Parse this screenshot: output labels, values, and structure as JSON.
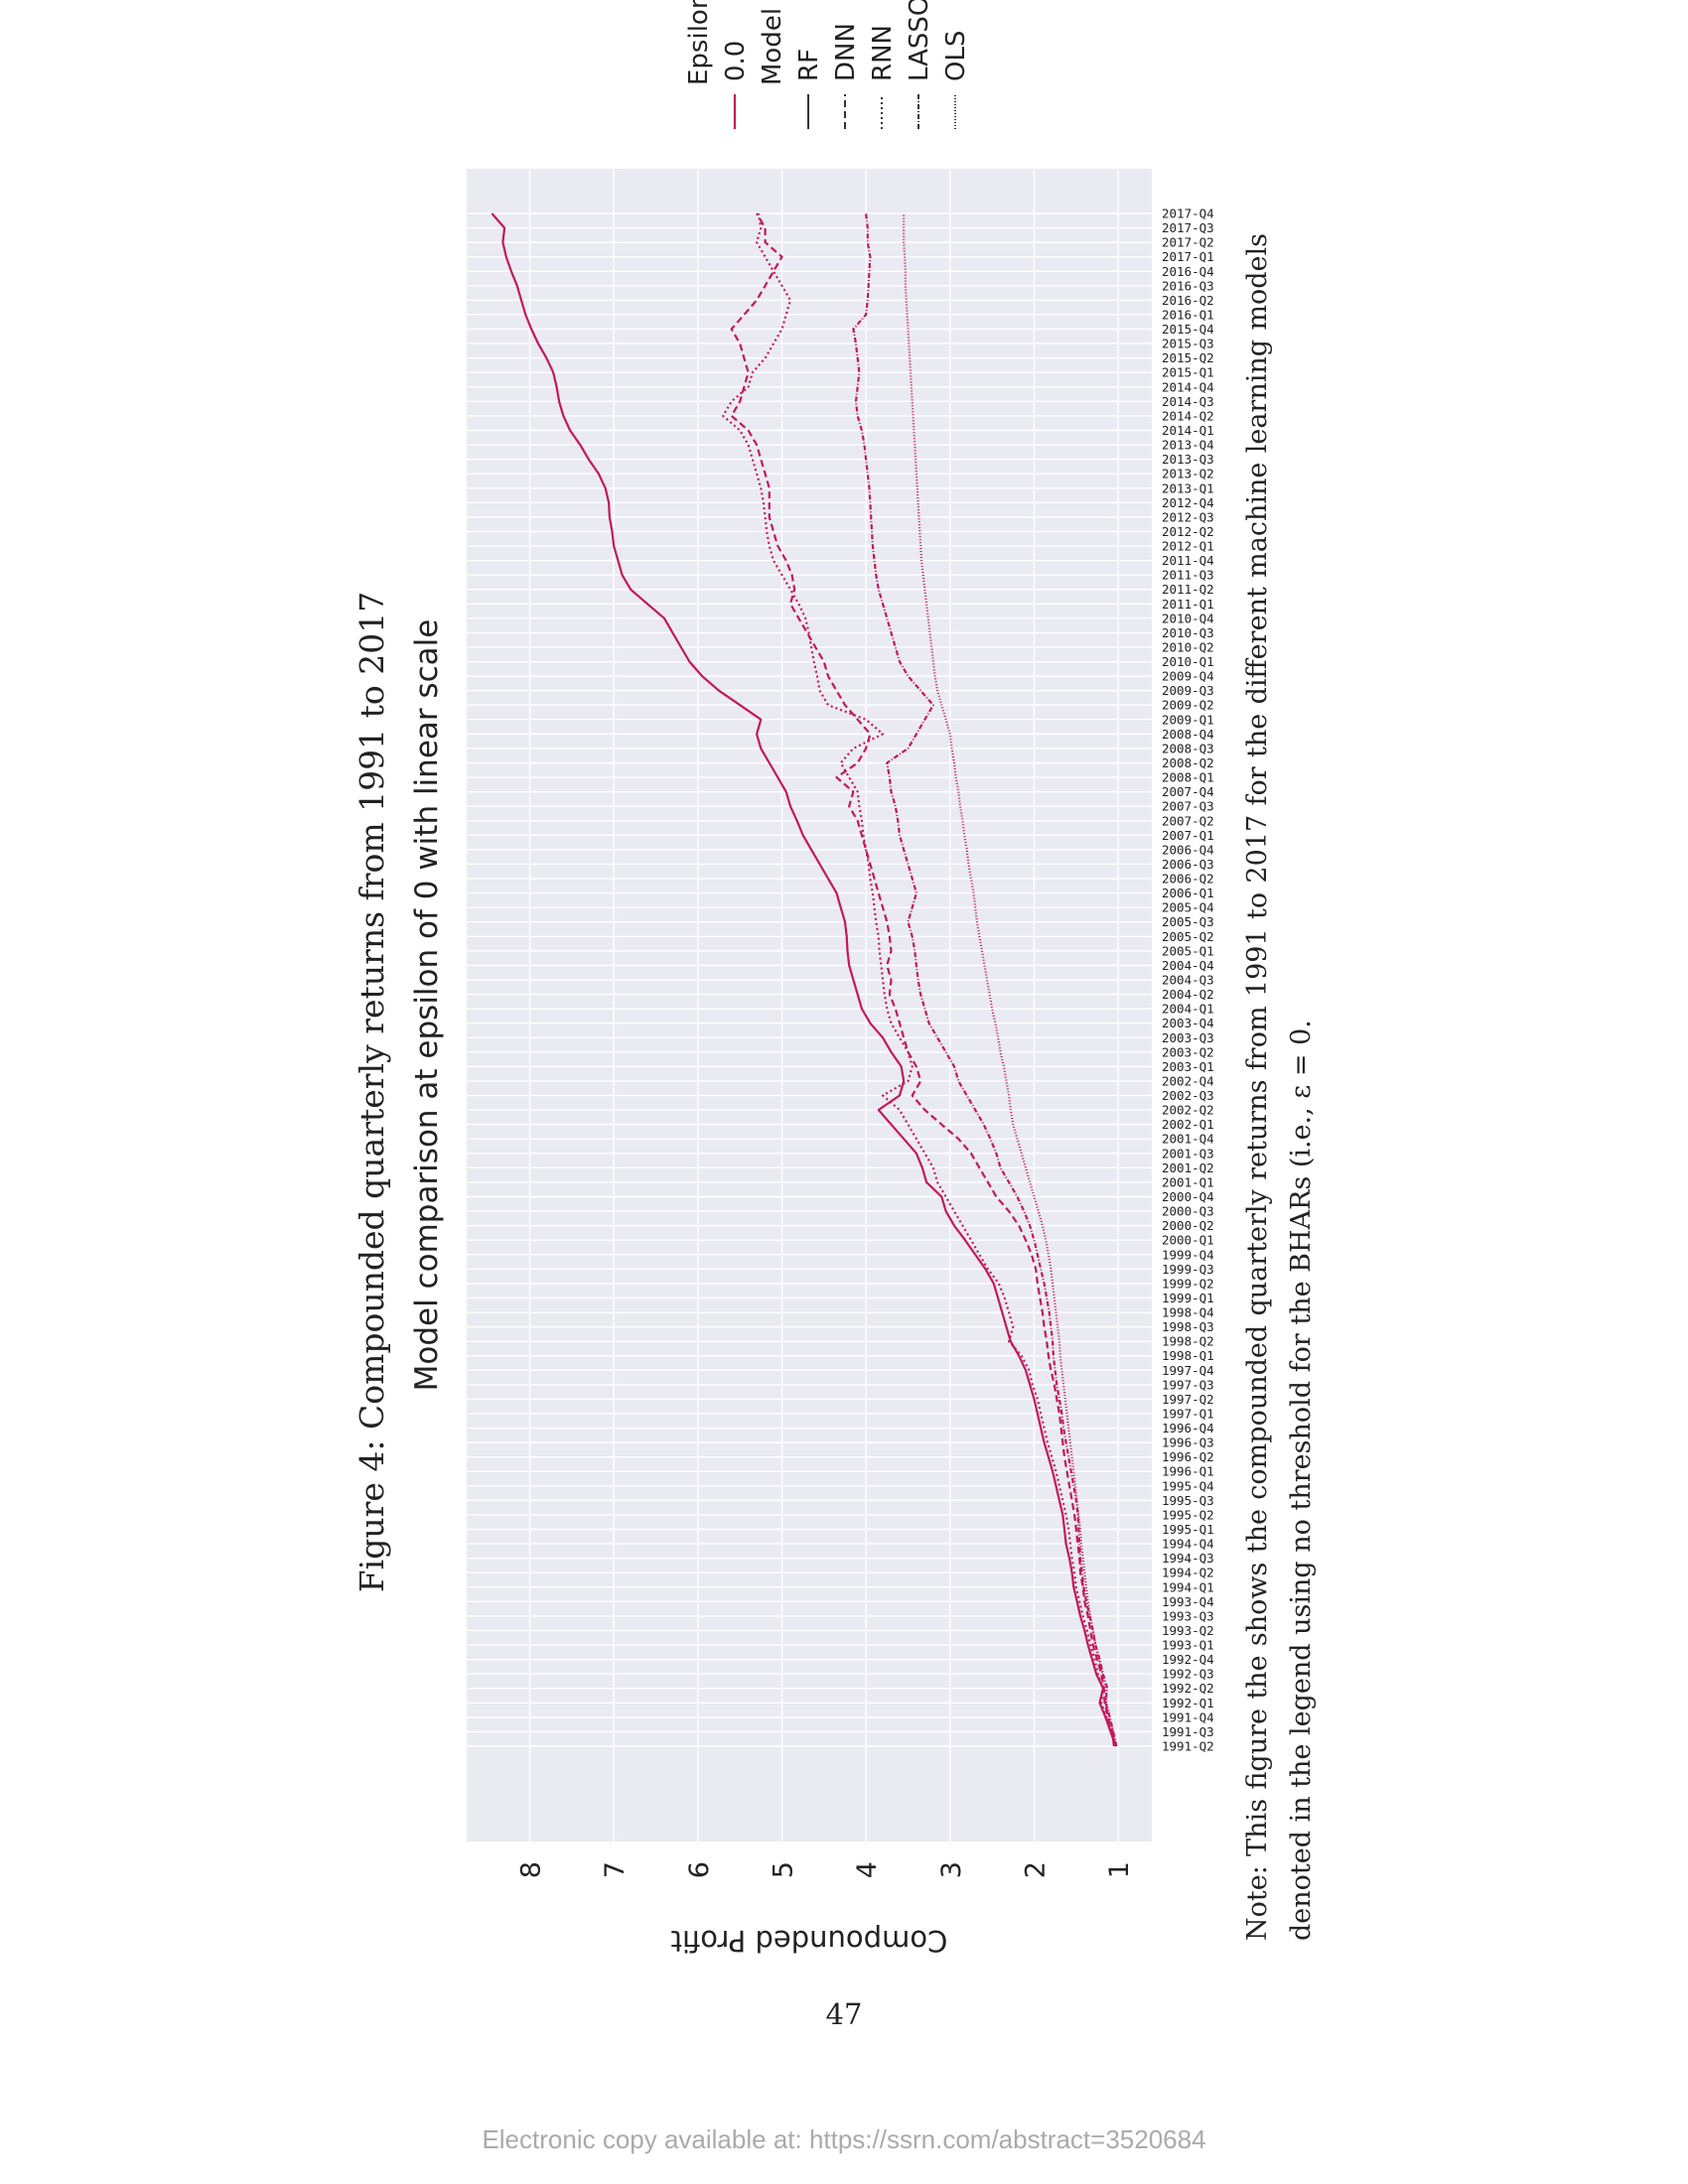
{
  "figure_caption": "Figure 4: Compounded quarterly returns from 1991 to 2017",
  "note": "Note: This figure the shows the compounded quarterly returns from 1991 to 2017 for the different machine learning models denoted in the legend using no threshold for the BHARs (i.e., ε = 0.",
  "page_number": "47",
  "footer": "Electronic copy available at: https://ssrn.com/abstract=3520684",
  "colors": {
    "line": "#c2185b",
    "plot_bg": "#eaeaf2",
    "grid": "#ffffff",
    "text": "#222222"
  },
  "chart_data": {
    "type": "line",
    "title": "Model comparison at epsilon of 0 with linear scale",
    "xlabel": "",
    "ylabel": "Compounded Profit",
    "ylim": [
      0.6,
      8.75
    ],
    "yticks": [
      1,
      2,
      3,
      4,
      5,
      6,
      7,
      8
    ],
    "grid": true,
    "orientation": "rotated-90-ccw",
    "legend": {
      "placement": "outside-right",
      "hue_title": "Epsilon",
      "hue_entries": [
        "0.0"
      ],
      "style_title": "Model",
      "style_entries": [
        "RF",
        "DNN",
        "RNN",
        "LASSO",
        "OLS"
      ]
    },
    "x": [
      "1991-Q2",
      "1991-Q3",
      "1991-Q4",
      "1992-Q1",
      "1992-Q2",
      "1992-Q3",
      "1992-Q4",
      "1993-Q1",
      "1993-Q2",
      "1993-Q3",
      "1993-Q4",
      "1994-Q1",
      "1994-Q2",
      "1994-Q3",
      "1994-Q4",
      "1995-Q1",
      "1995-Q2",
      "1995-Q3",
      "1995-Q4",
      "1996-Q1",
      "1996-Q2",
      "1996-Q3",
      "1996-Q4",
      "1997-Q1",
      "1997-Q2",
      "1997-Q3",
      "1997-Q4",
      "1998-Q1",
      "1998-Q2",
      "1998-Q3",
      "1998-Q4",
      "1999-Q1",
      "1999-Q2",
      "1999-Q3",
      "1999-Q4",
      "2000-Q1",
      "2000-Q2",
      "2000-Q3",
      "2000-Q4",
      "2001-Q1",
      "2001-Q2",
      "2001-Q3",
      "2001-Q4",
      "2002-Q1",
      "2002-Q2",
      "2002-Q3",
      "2002-Q4",
      "2003-Q1",
      "2003-Q2",
      "2003-Q3",
      "2003-Q4",
      "2004-Q1",
      "2004-Q2",
      "2004-Q3",
      "2004-Q4",
      "2005-Q1",
      "2005-Q2",
      "2005-Q3",
      "2005-Q4",
      "2006-Q1",
      "2006-Q2",
      "2006-Q3",
      "2006-Q4",
      "2007-Q1",
      "2007-Q2",
      "2007-Q3",
      "2007-Q4",
      "2008-Q1",
      "2008-Q2",
      "2008-Q3",
      "2008-Q4",
      "2009-Q1",
      "2009-Q2",
      "2009-Q3",
      "2009-Q4",
      "2010-Q1",
      "2010-Q2",
      "2010-Q3",
      "2010-Q4",
      "2011-Q1",
      "2011-Q2",
      "2011-Q3",
      "2011-Q4",
      "2012-Q1",
      "2012-Q2",
      "2012-Q3",
      "2012-Q4",
      "2013-Q1",
      "2013-Q2",
      "2013-Q3",
      "2013-Q4",
      "2014-Q1",
      "2014-Q2",
      "2014-Q3",
      "2014-Q4",
      "2015-Q1",
      "2015-Q2",
      "2015-Q3",
      "2015-Q4",
      "2016-Q1",
      "2016-Q2",
      "2016-Q3",
      "2016-Q4",
      "2017-Q1",
      "2017-Q2",
      "2017-Q3",
      "2017-Q4"
    ],
    "series": [
      {
        "name": "RF",
        "dash": "",
        "values": [
          1.03,
          1.09,
          1.15,
          1.22,
          1.18,
          1.26,
          1.31,
          1.36,
          1.4,
          1.45,
          1.49,
          1.53,
          1.55,
          1.58,
          1.62,
          1.64,
          1.66,
          1.7,
          1.74,
          1.78,
          1.83,
          1.88,
          1.92,
          1.96,
          2.0,
          2.05,
          2.1,
          2.18,
          2.28,
          2.33,
          2.38,
          2.43,
          2.48,
          2.58,
          2.7,
          2.82,
          2.95,
          3.05,
          3.1,
          3.28,
          3.33,
          3.4,
          3.55,
          3.7,
          3.85,
          3.6,
          3.55,
          3.58,
          3.7,
          3.8,
          3.95,
          4.05,
          4.1,
          4.15,
          4.2,
          4.22,
          4.23,
          4.25,
          4.3,
          4.35,
          4.45,
          4.55,
          4.65,
          4.75,
          4.82,
          4.9,
          4.95,
          5.05,
          5.15,
          5.25,
          5.3,
          5.25,
          5.5,
          5.75,
          5.95,
          6.1,
          6.2,
          6.3,
          6.4,
          6.6,
          6.8,
          6.9,
          6.95,
          7.0,
          7.02,
          7.05,
          7.06,
          7.1,
          7.18,
          7.3,
          7.4,
          7.52,
          7.6,
          7.65,
          7.68,
          7.72,
          7.8,
          7.9,
          7.98,
          8.05,
          8.1,
          8.15,
          8.22,
          8.28,
          8.32,
          8.3,
          8.45
        ]
      },
      {
        "name": "DNN",
        "dash": "7,4",
        "values": [
          1.05,
          1.07,
          1.12,
          1.16,
          1.17,
          1.2,
          1.25,
          1.3,
          1.33,
          1.36,
          1.4,
          1.42,
          1.45,
          1.46,
          1.48,
          1.5,
          1.52,
          1.55,
          1.58,
          1.61,
          1.64,
          1.66,
          1.68,
          1.7,
          1.73,
          1.76,
          1.8,
          1.83,
          1.85,
          1.88,
          1.9,
          1.93,
          1.96,
          1.98,
          2.03,
          2.1,
          2.18,
          2.3,
          2.45,
          2.55,
          2.65,
          2.75,
          2.9,
          3.1,
          3.3,
          3.45,
          3.35,
          3.4,
          3.5,
          3.55,
          3.6,
          3.65,
          3.72,
          3.7,
          3.75,
          3.7,
          3.72,
          3.75,
          3.8,
          3.85,
          3.9,
          3.95,
          4.0,
          4.05,
          4.1,
          4.2,
          4.15,
          4.35,
          4.1,
          4.0,
          3.95,
          4.1,
          4.25,
          4.35,
          4.45,
          4.5,
          4.6,
          4.7,
          4.8,
          4.9,
          4.85,
          4.88,
          4.95,
          5.05,
          5.1,
          5.15,
          5.15,
          5.15,
          5.2,
          5.25,
          5.3,
          5.4,
          5.6,
          5.5,
          5.45,
          5.4,
          5.45,
          5.5,
          5.6,
          5.45,
          5.3,
          5.2,
          5.1,
          5.0,
          5.2,
          5.2,
          5.3
        ]
      },
      {
        "name": "RNN",
        "dash": "2,3",
        "values": [
          1.03,
          1.08,
          1.14,
          1.2,
          1.18,
          1.24,
          1.28,
          1.33,
          1.37,
          1.42,
          1.46,
          1.5,
          1.52,
          1.55,
          1.57,
          1.59,
          1.62,
          1.66,
          1.7,
          1.74,
          1.79,
          1.84,
          1.88,
          1.92,
          1.96,
          2.02,
          2.06,
          2.15,
          2.3,
          2.25,
          2.3,
          2.35,
          2.42,
          2.55,
          2.65,
          2.75,
          2.85,
          2.95,
          3.05,
          3.15,
          3.2,
          3.3,
          3.4,
          3.5,
          3.6,
          3.8,
          3.5,
          3.45,
          3.5,
          3.6,
          3.7,
          3.75,
          3.78,
          3.8,
          3.82,
          3.84,
          3.85,
          3.88,
          3.9,
          3.92,
          3.95,
          3.97,
          4.0,
          4.03,
          4.05,
          4.08,
          4.1,
          4.2,
          4.3,
          4.15,
          3.8,
          4.0,
          4.45,
          4.55,
          4.58,
          4.62,
          4.65,
          4.68,
          4.72,
          4.8,
          4.9,
          5.0,
          5.1,
          5.15,
          5.18,
          5.2,
          5.22,
          5.25,
          5.3,
          5.35,
          5.4,
          5.5,
          5.7,
          5.6,
          5.4,
          5.35,
          5.2,
          5.1,
          5.0,
          4.95,
          4.9,
          5.0,
          5.1,
          5.2,
          5.3,
          5.25,
          5.28
        ]
      },
      {
        "name": "LASSO",
        "dash": "5,2,1,2",
        "values": [
          1.02,
          1.06,
          1.1,
          1.15,
          1.13,
          1.18,
          1.22,
          1.27,
          1.3,
          1.34,
          1.38,
          1.41,
          1.43,
          1.45,
          1.46,
          1.47,
          1.48,
          1.5,
          1.53,
          1.56,
          1.59,
          1.62,
          1.65,
          1.67,
          1.7,
          1.73,
          1.75,
          1.77,
          1.78,
          1.8,
          1.82,
          1.85,
          1.88,
          1.92,
          1.96,
          2.0,
          2.05,
          2.12,
          2.2,
          2.3,
          2.4,
          2.45,
          2.52,
          2.6,
          2.7,
          2.8,
          2.9,
          2.95,
          3.05,
          3.15,
          3.25,
          3.3,
          3.35,
          3.38,
          3.4,
          3.42,
          3.45,
          3.5,
          3.45,
          3.4,
          3.45,
          3.5,
          3.55,
          3.6,
          3.62,
          3.65,
          3.7,
          3.72,
          3.75,
          3.5,
          3.4,
          3.3,
          3.2,
          3.35,
          3.5,
          3.6,
          3.65,
          3.7,
          3.75,
          3.8,
          3.85,
          3.88,
          3.9,
          3.92,
          3.93,
          3.94,
          3.95,
          3.96,
          3.98,
          4.0,
          4.02,
          4.05,
          4.1,
          4.12,
          4.1,
          4.08,
          4.1,
          4.12,
          4.15,
          4.0,
          3.98,
          3.97,
          3.96,
          3.95,
          3.98,
          3.98,
          4.0
        ]
      },
      {
        "name": "OLS",
        "dash": "1,2",
        "values": [
          1.03,
          1.06,
          1.1,
          1.14,
          1.15,
          1.19,
          1.23,
          1.27,
          1.3,
          1.33,
          1.36,
          1.38,
          1.4,
          1.42,
          1.44,
          1.45,
          1.47,
          1.49,
          1.51,
          1.53,
          1.55,
          1.57,
          1.59,
          1.61,
          1.63,
          1.65,
          1.67,
          1.69,
          1.7,
          1.72,
          1.74,
          1.76,
          1.78,
          1.8,
          1.83,
          1.86,
          1.9,
          1.95,
          2.0,
          2.05,
          2.1,
          2.15,
          2.2,
          2.25,
          2.28,
          2.3,
          2.33,
          2.36,
          2.4,
          2.43,
          2.46,
          2.5,
          2.53,
          2.56,
          2.59,
          2.62,
          2.65,
          2.68,
          2.7,
          2.72,
          2.75,
          2.78,
          2.8,
          2.83,
          2.85,
          2.88,
          2.9,
          2.93,
          2.95,
          2.98,
          3.0,
          3.05,
          3.1,
          3.15,
          3.18,
          3.2,
          3.22,
          3.24,
          3.26,
          3.28,
          3.3,
          3.32,
          3.34,
          3.35,
          3.36,
          3.37,
          3.38,
          3.39,
          3.4,
          3.41,
          3.42,
          3.43,
          3.44,
          3.45,
          3.46,
          3.47,
          3.48,
          3.49,
          3.5,
          3.51,
          3.52,
          3.53,
          3.53,
          3.54,
          3.55,
          3.55,
          3.55
        ]
      }
    ]
  }
}
